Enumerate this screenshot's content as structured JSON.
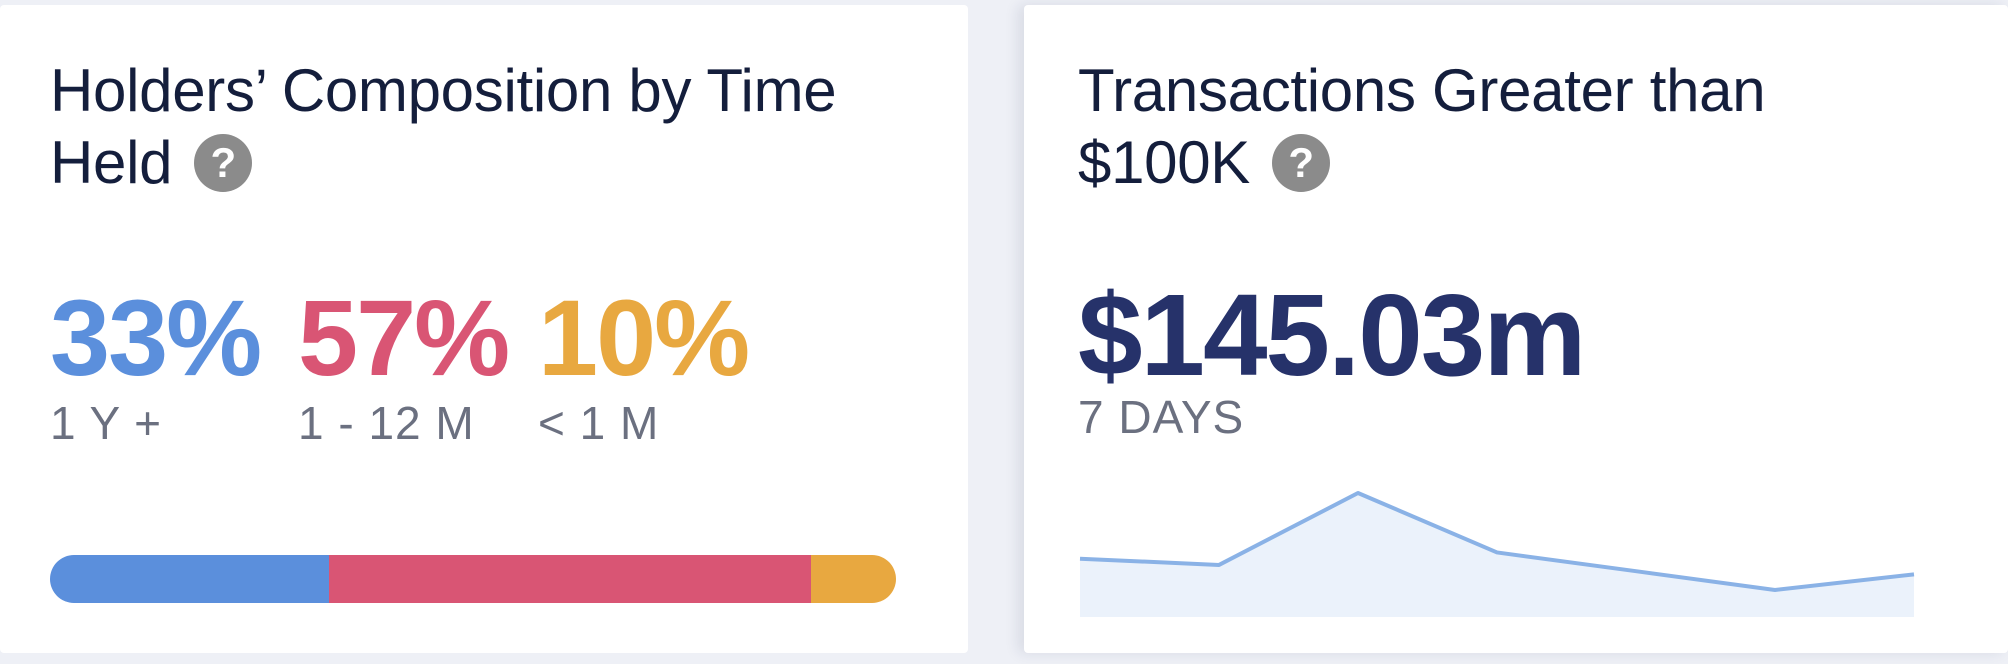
{
  "holders_card": {
    "title": "Holders’ Composition by Time Held",
    "title_line1": "Holders’ Composition by Time",
    "title_line2": "Held",
    "help_icon": "question-circle-icon",
    "segments": [
      {
        "value": "33%",
        "label": "1 Y +",
        "fraction": 0.33,
        "color": "#5b8fdc"
      },
      {
        "value": "57%",
        "label": "1 - 12 M",
        "fraction": 0.57,
        "color": "#d95574"
      },
      {
        "value": "10%",
        "label": "< 1 M",
        "fraction": 0.1,
        "color": "#e8a840"
      }
    ]
  },
  "transactions_card": {
    "title_line1": "Transactions Greater than",
    "title_line2": "$100K",
    "help_icon": "question-circle-icon",
    "value": "$145.03m",
    "period": "7 DAYS",
    "sparkline": {
      "type": "area",
      "values": [
        3.6,
        3.2,
        7.8,
        4.0,
        2.8,
        1.6,
        2.6
      ],
      "line_color": "#8ab2e6",
      "fill_color": "#ebf2fb"
    }
  }
}
